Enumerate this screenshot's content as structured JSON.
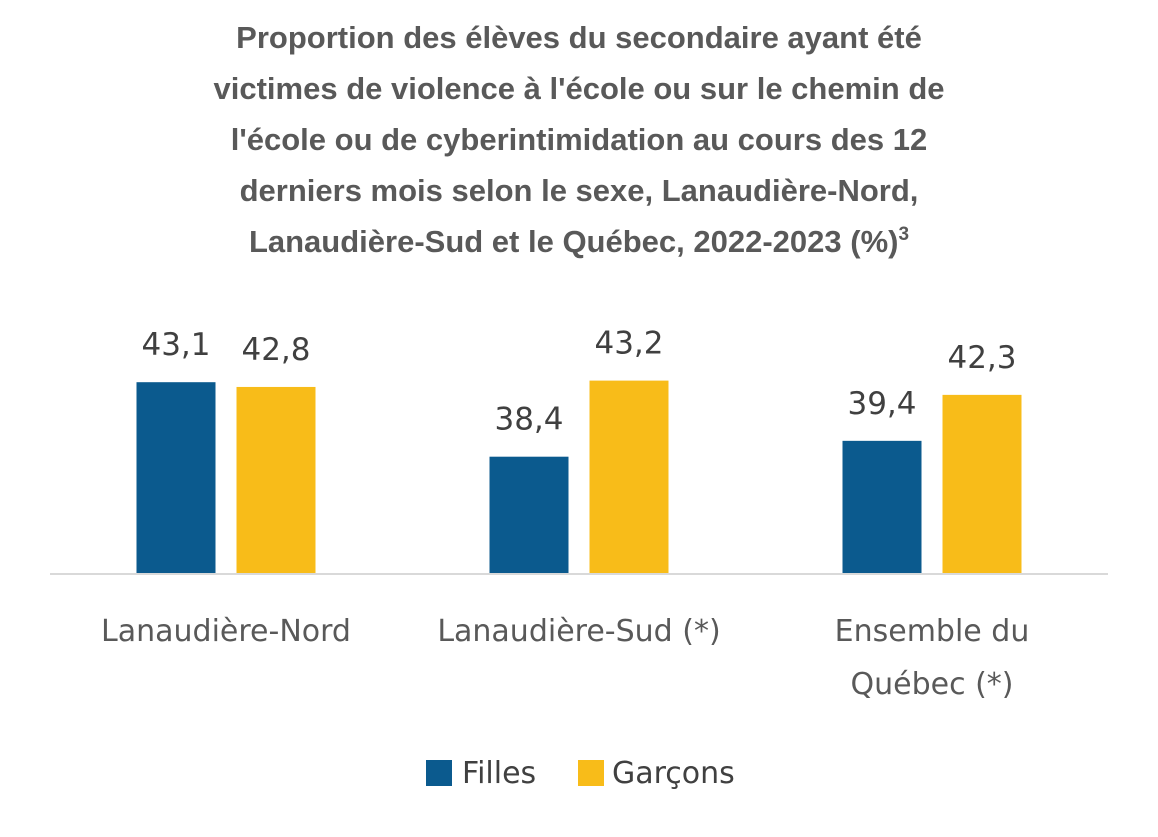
{
  "chart_data": {
    "type": "bar",
    "title_lines": [
      "Proportion des élèves du secondaire ayant été",
      "victimes de violence à l'école ou sur le chemin de",
      "l'école ou de cyberintimidation au cours des 12",
      "derniers mois selon le sexe, Lanaudière-Nord,",
      "Lanaudière-Sud et le Québec, 2022-2023 (%)"
    ],
    "title_superscript": "3",
    "categories": [
      [
        "Lanaudière-Nord"
      ],
      [
        "Lanaudière-Sud (*)"
      ],
      [
        "Ensemble du",
        "Québec (*)"
      ]
    ],
    "series": [
      {
        "name": "Filles",
        "color": "#0b5a8e",
        "values": [
          43.1,
          38.4,
          39.4
        ],
        "labels": [
          "43,1",
          "38,4",
          "39,4"
        ]
      },
      {
        "name": "Garçons",
        "color": "#f8bc19",
        "values": [
          42.8,
          43.2,
          42.3
        ],
        "labels": [
          "42,8",
          "43,2",
          "42,3"
        ]
      }
    ],
    "ylim": [
      31.0,
      44.5
    ],
    "grid": false,
    "legend_position": "bottom"
  }
}
